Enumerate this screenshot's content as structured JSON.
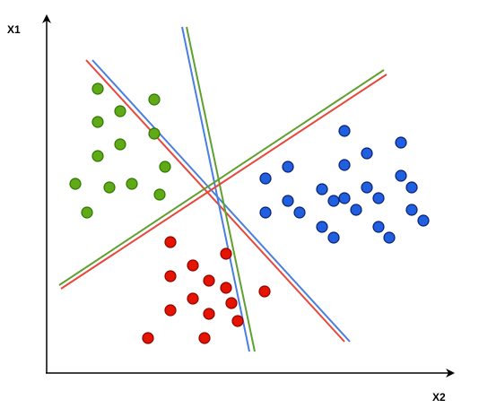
{
  "axes": {
    "y_label": "X1",
    "x_label": "X2"
  }
}
